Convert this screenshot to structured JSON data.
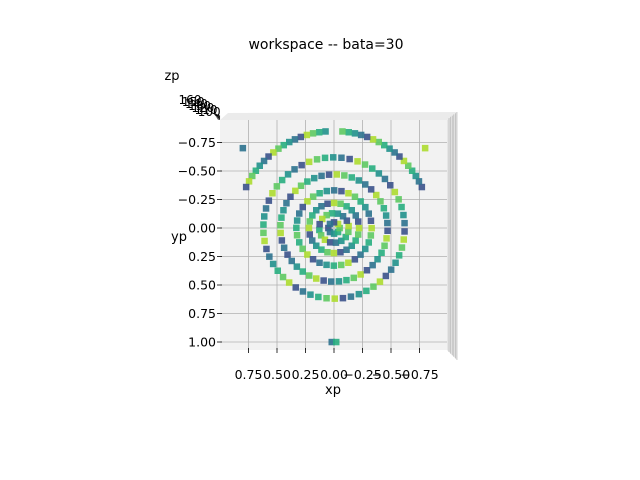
{
  "chart_data": {
    "type": "scatter",
    "title": "workspace -- bata=30",
    "xlabel": "xp",
    "ylabel": "yp",
    "zlabel": "zp",
    "view": "3d-top",
    "grid": true,
    "xlim": [
      1.0,
      -1.0
    ],
    "ylim": [
      -1.0,
      1.05
    ],
    "x_ticks": [
      "0.75",
      "0.50",
      "0.25",
      "0.00",
      "−0.25",
      "−0.50",
      "−0.75"
    ],
    "x_tick_values": [
      0.75,
      0.5,
      0.25,
      0.0,
      -0.25,
      -0.5,
      -0.75
    ],
    "y_ticks": [
      "−0.75",
      "−0.50",
      "−0.25",
      "0.00",
      "0.25",
      "0.50",
      "0.75",
      "1.00"
    ],
    "y_tick_values": [
      -0.75,
      -0.5,
      -0.25,
      0.0,
      0.25,
      0.5,
      0.75,
      1.0
    ],
    "z_ticks": [
      "160",
      "150",
      "140",
      "130",
      "120",
      "110",
      "100"
    ],
    "marker": "square",
    "colormap": [
      "#3b528b",
      "#2c728e",
      "#21918c",
      "#28ae80",
      "#5ec962",
      "#addc30"
    ],
    "rings": [
      {
        "radius": 0.05,
        "count": 8
      },
      {
        "radius": 0.13,
        "count": 16
      },
      {
        "radius": 0.22,
        "count": 24
      },
      {
        "radius": 0.33,
        "count": 32
      },
      {
        "radius": 0.47,
        "count": 44
      },
      {
        "radius": 0.62,
        "count": 54
      }
    ],
    "outer_arcs": {
      "radius": 0.85,
      "count": 34,
      "span_deg": 60
    },
    "extra_points": [
      {
        "x": 0.02,
        "y": 1.0
      },
      {
        "x": -0.02,
        "y": 1.0
      },
      {
        "x": -0.8,
        "y": -0.7
      },
      {
        "x": 0.8,
        "y": -0.7
      }
    ]
  }
}
